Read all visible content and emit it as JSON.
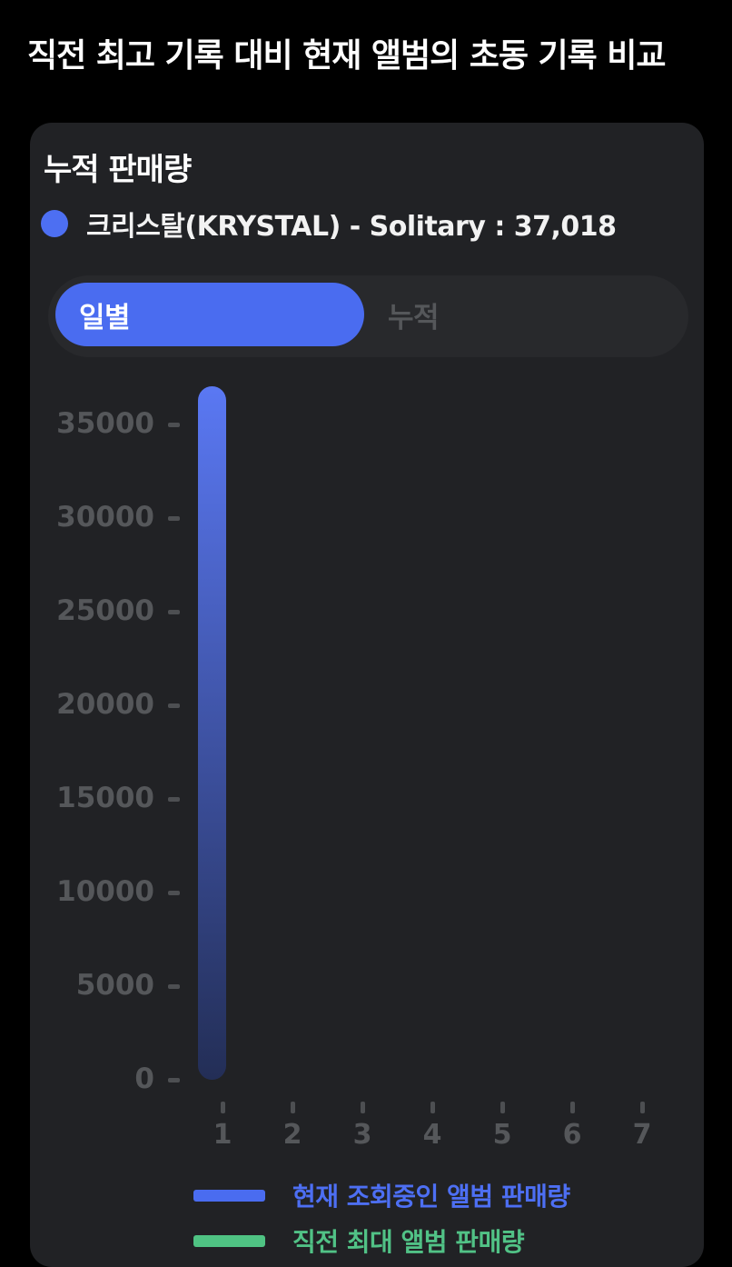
{
  "page": {
    "title": "직전 최고 기록 대비 현재 앨범의 초동 기록 비교",
    "background": "#000000"
  },
  "card": {
    "title": "누적 판매량",
    "background": "#212225",
    "series": {
      "label": "크리스탈(KRYSTAL) - Solitary : 37,018",
      "dot_color": "#4d6ff2"
    },
    "toggle": {
      "options": [
        {
          "id": "daily",
          "label": "일별",
          "active": true
        },
        {
          "id": "cumulative",
          "label": "누적",
          "active": false
        }
      ],
      "active_bg": "#4a6cf0",
      "active_text": "#ffffff",
      "inactive_text": "#55575a"
    }
  },
  "chart_data": {
    "type": "bar",
    "title": "누적 판매량",
    "xlabel": "",
    "ylabel": "",
    "categories": [
      "1",
      "2",
      "3",
      "4",
      "5",
      "6",
      "7"
    ],
    "series": [
      {
        "name": "현재 조회중인 앨범 판매량",
        "color": "#4a6cf0",
        "values": [
          37018,
          null,
          null,
          null,
          null,
          null,
          null
        ]
      },
      {
        "name": "직전 최대 앨범 판매량",
        "color": "#4fc383",
        "values": [
          null,
          null,
          null,
          null,
          null,
          null,
          null
        ]
      }
    ],
    "ylim": [
      0,
      37018
    ],
    "yticks": [
      0,
      5000,
      10000,
      15000,
      20000,
      25000,
      30000,
      35000
    ],
    "grid": false,
    "legend_position": "bottom",
    "bar_gradient_top": "#5a78f3",
    "bar_gradient_bottom": "#232e56",
    "axis_text_color": "#55575a"
  },
  "legend": {
    "items": [
      {
        "label": "현재 조회중인 앨범 판매량",
        "swatch_color": "#4a6cf0",
        "text_color": "#4d6ff3"
      },
      {
        "label": "직전 최대 앨범 판매량",
        "swatch_color": "#4fc383",
        "text_color": "#51c286"
      }
    ]
  }
}
